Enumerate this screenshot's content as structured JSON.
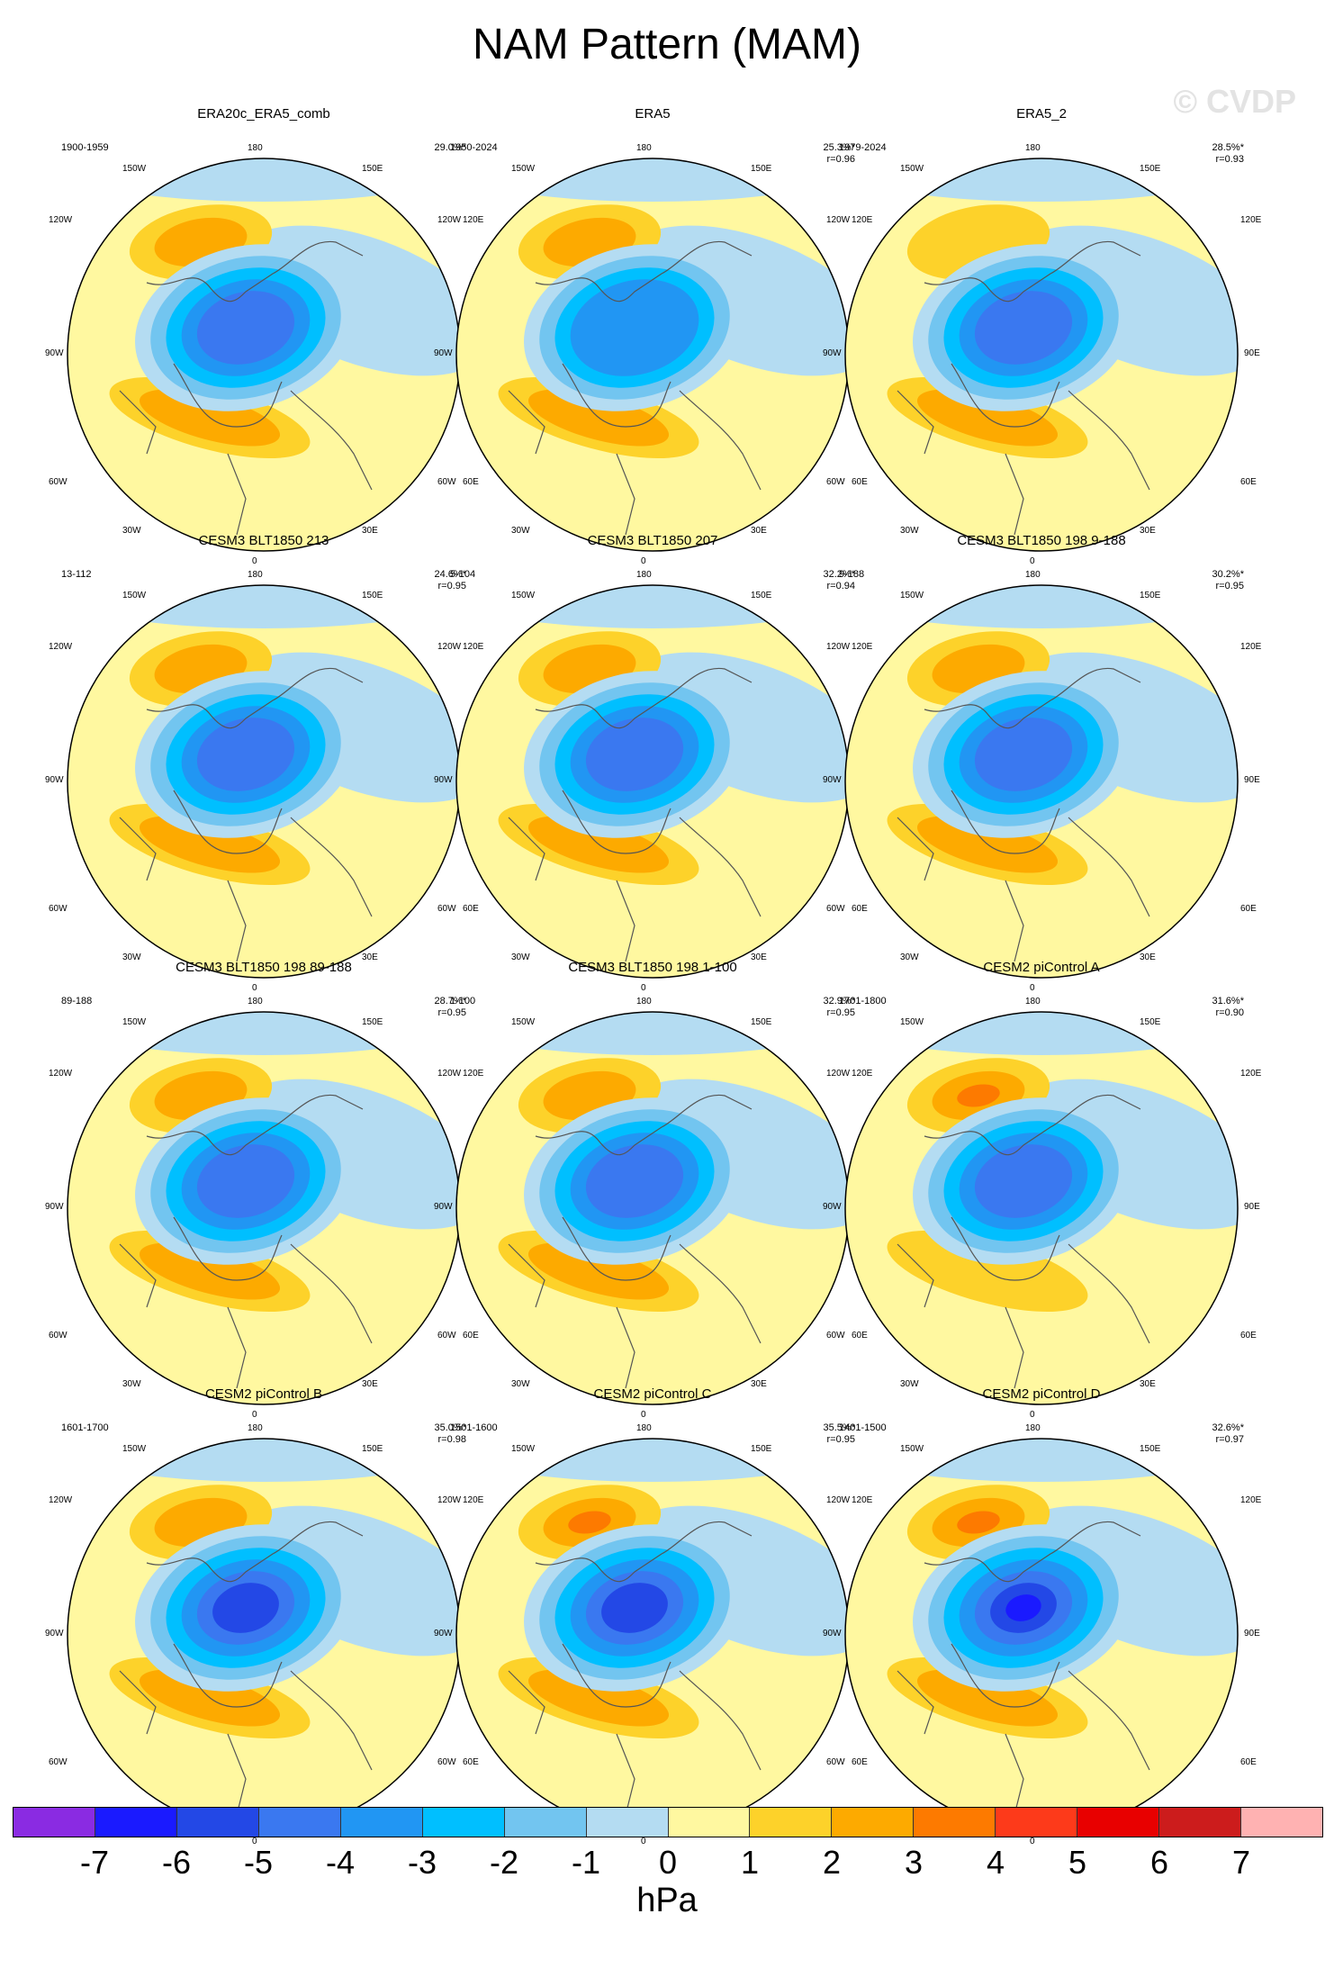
{
  "title": "NAM Pattern (MAM)",
  "watermark": "© CVDP",
  "lon_labels": {
    "top": "180",
    "bottom": "0",
    "ul": "150W",
    "ur": "150E",
    "ml_u": "120W",
    "mr_u": "120E",
    "ml": "90W",
    "mr": "90E",
    "ll_u": "60W",
    "lr_u": "60E",
    "ll": "30W",
    "lr": "30E"
  },
  "panels": [
    {
      "title": "ERA20c_ERA5_comb",
      "period": "1900-1959",
      "pct": "29.0%*",
      "r": "",
      "pos_peak": 2,
      "neg_peak": -5,
      "atl": 2
    },
    {
      "title": "ERA5",
      "period": "1950-2024",
      "pct": "25.3%*",
      "r": "r=0.96",
      "pos_peak": 2,
      "neg_peak": -4,
      "atl": 2
    },
    {
      "title": "ERA5_2",
      "period": "1979-2024",
      "pct": "28.5%*",
      "r": "r=0.93",
      "pos_peak": 1,
      "neg_peak": -5,
      "atl": 2
    },
    {
      "title": "CESM3 BLT1850 213",
      "period": "13-112",
      "pct": "24.6%*",
      "r": "r=0.95",
      "pos_peak": 2,
      "neg_peak": -5,
      "atl": 2
    },
    {
      "title": "CESM3 BLT1850 207",
      "period": "5-104",
      "pct": "32.2%*",
      "r": "r=0.94",
      "pos_peak": 2,
      "neg_peak": -5,
      "atl": 2
    },
    {
      "title": "CESM3 BLT1850 198 9-188",
      "period": "9-188",
      "pct": "30.2%*",
      "r": "r=0.95",
      "pos_peak": 2,
      "neg_peak": -5,
      "atl": 2
    },
    {
      "title": "CESM3 BLT1850 198 89-188",
      "period": "89-188",
      "pct": "28.7%*",
      "r": "r=0.95",
      "pos_peak": 2,
      "neg_peak": -5,
      "atl": 2
    },
    {
      "title": "CESM3 BLT1850 198 1-100",
      "period": "1-100",
      "pct": "32.9%*",
      "r": "r=0.95",
      "pos_peak": 2,
      "neg_peak": -5,
      "atl": 2
    },
    {
      "title": "CESM2 piControl A",
      "period": "1701-1800",
      "pct": "31.6%*",
      "r": "r=0.90",
      "pos_peak": 3,
      "neg_peak": -5,
      "atl": 1
    },
    {
      "title": "CESM2 piControl B",
      "period": "1601-1700",
      "pct": "35.0%*",
      "r": "r=0.98",
      "pos_peak": 2,
      "neg_peak": -6,
      "atl": 2
    },
    {
      "title": "CESM2 piControl C",
      "period": "1501-1600",
      "pct": "35.5%*",
      "r": "r=0.95",
      "pos_peak": 3,
      "neg_peak": -6,
      "atl": 2
    },
    {
      "title": "CESM2 piControl D",
      "period": "1401-1500",
      "pct": "32.6%*",
      "r": "r=0.97",
      "pos_peak": 3,
      "neg_peak": -7,
      "atl": 2
    }
  ],
  "colorbar": {
    "colors": [
      "#8a2be2",
      "#1a1aff",
      "#2348e6",
      "#3a78f0",
      "#2196f3",
      "#00bfff",
      "#72c5f0",
      "#b4dcf2",
      "#fff8a0",
      "#fdd22a",
      "#fdaa00",
      "#fd7a00",
      "#fd3a1a",
      "#e80000",
      "#cc1c1c",
      "#ffb2b2"
    ],
    "ticks": [
      "-7",
      "-6",
      "-5",
      "-4",
      "-3",
      "-2",
      "-1",
      "0",
      "1",
      "2",
      "3",
      "4",
      "5",
      "6",
      "7"
    ],
    "units": "hPa"
  }
}
